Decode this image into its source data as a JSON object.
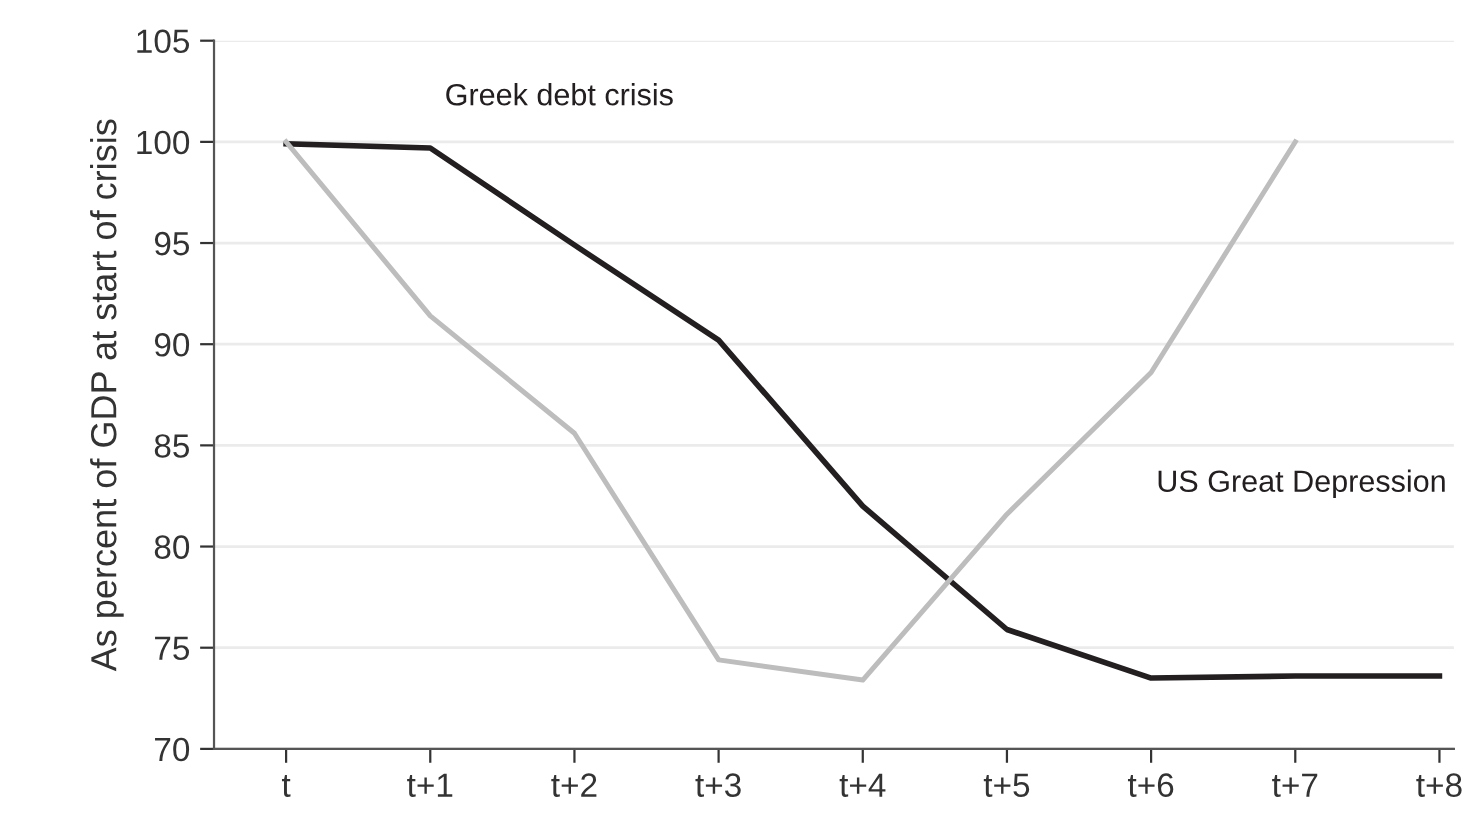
{
  "chart_data": {
    "type": "line",
    "ylabel": "As percent of GDP at start of crisis",
    "categories": [
      "t",
      "t+1",
      "t+2",
      "t+3",
      "t+4",
      "t+5",
      "t+6",
      "t+7",
      "t+8"
    ],
    "series": [
      {
        "name": "Greek debt crisis",
        "color": "#231f20",
        "values": [
          99.9,
          99.7,
          94.9,
          90.2,
          82.0,
          75.9,
          73.5,
          73.6,
          73.6
        ]
      },
      {
        "name": "US Great Depression",
        "color": "#bdbdbd",
        "values": [
          100,
          91.4,
          85.6,
          74.4,
          73.4,
          81.6,
          88.6,
          100,
          null
        ]
      }
    ],
    "ylim": [
      70,
      105
    ],
    "yticks": [
      70,
      75,
      80,
      85,
      90,
      95,
      100,
      105
    ],
    "grid": "y",
    "legend": false,
    "marker": "none",
    "line_style": "solid"
  }
}
